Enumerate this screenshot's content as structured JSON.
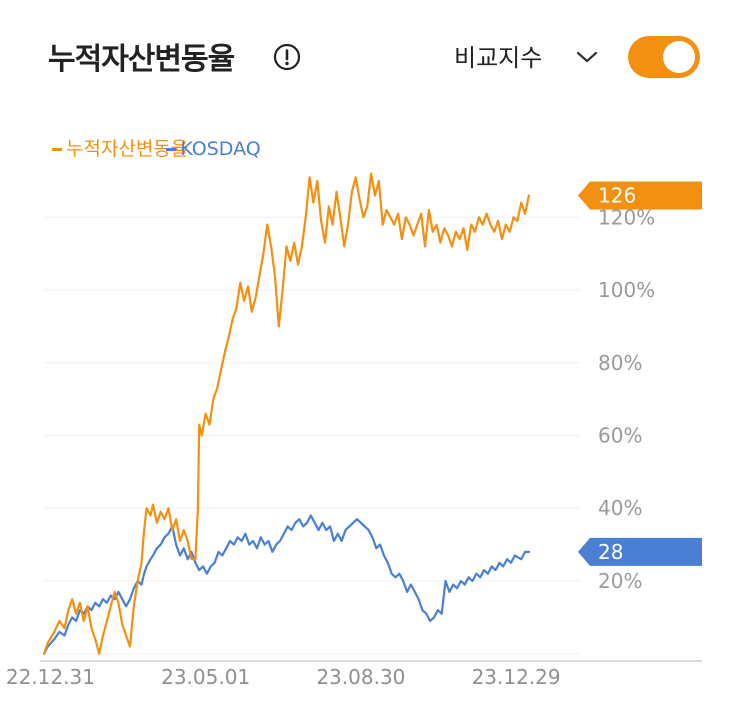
{
  "header": {
    "title": "누적자산변동율",
    "info_icon": "info-circle-icon",
    "compare_label": "비교지수",
    "chevron_icon": "chevron-down-icon",
    "toggle_on": true,
    "accent_color": "#f39012"
  },
  "chart_data": {
    "type": "line",
    "title": "",
    "legend_placement": "top-left",
    "grid": true,
    "y_axis_side": "right",
    "ylim": [
      -2,
      133
    ],
    "yticks": [
      "20%",
      "40%",
      "60%",
      "80%",
      "100%",
      "120%"
    ],
    "ytick_values": [
      20,
      40,
      60,
      80,
      100,
      120
    ],
    "xlim": [
      "2022-12-26",
      "2024-02-02"
    ],
    "xticks": [
      "22.12.31",
      "23.05.01",
      "23.08.30",
      "23.12.29"
    ],
    "xtick_values": [
      "2022-12-31",
      "2023-05-01",
      "2023-08-30",
      "2023-12-29"
    ],
    "series": [
      {
        "name": "누적자산변동율",
        "color": "#f39012",
        "last_value_label": "126",
        "points": [
          [
            "2022-12-26",
            0
          ],
          [
            "2022-12-29",
            3
          ],
          [
            "2023-01-03",
            6
          ],
          [
            "2023-01-07",
            9
          ],
          [
            "2023-01-11",
            7
          ],
          [
            "2023-01-14",
            12
          ],
          [
            "2023-01-17",
            15
          ],
          [
            "2023-01-20",
            11
          ],
          [
            "2023-01-23",
            14
          ],
          [
            "2023-01-26",
            9
          ],
          [
            "2023-01-29",
            13
          ],
          [
            "2023-02-01",
            7
          ],
          [
            "2023-02-04",
            4
          ],
          [
            "2023-02-07",
            0
          ],
          [
            "2023-02-10",
            5
          ],
          [
            "2023-02-13",
            9
          ],
          [
            "2023-02-16",
            13
          ],
          [
            "2023-02-19",
            17
          ],
          [
            "2023-02-22",
            14
          ],
          [
            "2023-02-25",
            8
          ],
          [
            "2023-02-28",
            5
          ],
          [
            "2023-03-03",
            2
          ],
          [
            "2023-03-06",
            13
          ],
          [
            "2023-03-09",
            20
          ],
          [
            "2023-03-12",
            25
          ],
          [
            "2023-03-14",
            34
          ],
          [
            "2023-03-16",
            40
          ],
          [
            "2023-03-19",
            38
          ],
          [
            "2023-03-21",
            41
          ],
          [
            "2023-03-24",
            36
          ],
          [
            "2023-03-27",
            39
          ],
          [
            "2023-03-30",
            37
          ],
          [
            "2023-04-02",
            40
          ],
          [
            "2023-04-05",
            34
          ],
          [
            "2023-04-08",
            37
          ],
          [
            "2023-04-11",
            31
          ],
          [
            "2023-04-14",
            34
          ],
          [
            "2023-04-17",
            31
          ],
          [
            "2023-04-20",
            26
          ],
          [
            "2023-04-23",
            26
          ],
          [
            "2023-04-25",
            40
          ],
          [
            "2023-04-26",
            63
          ],
          [
            "2023-04-28",
            60
          ],
          [
            "2023-05-01",
            66
          ],
          [
            "2023-05-04",
            63
          ],
          [
            "2023-05-07",
            70
          ],
          [
            "2023-05-10",
            73
          ],
          [
            "2023-05-13",
            78
          ],
          [
            "2023-05-16",
            83
          ],
          [
            "2023-05-19",
            87
          ],
          [
            "2023-05-22",
            92
          ],
          [
            "2023-05-25",
            95
          ],
          [
            "2023-05-28",
            102
          ],
          [
            "2023-05-31",
            97
          ],
          [
            "2023-06-03",
            101
          ],
          [
            "2023-06-06",
            94
          ],
          [
            "2023-06-09",
            98
          ],
          [
            "2023-06-12",
            104
          ],
          [
            "2023-06-15",
            110
          ],
          [
            "2023-06-18",
            118
          ],
          [
            "2023-06-21",
            112
          ],
          [
            "2023-06-24",
            104
          ],
          [
            "2023-06-27",
            90
          ],
          [
            "2023-06-30",
            100
          ],
          [
            "2023-07-03",
            112
          ],
          [
            "2023-07-06",
            108
          ],
          [
            "2023-07-09",
            113
          ],
          [
            "2023-07-12",
            107
          ],
          [
            "2023-07-15",
            112
          ],
          [
            "2023-07-18",
            120
          ],
          [
            "2023-07-21",
            131
          ],
          [
            "2023-07-24",
            124
          ],
          [
            "2023-07-27",
            130
          ],
          [
            "2023-07-30",
            119
          ],
          [
            "2023-08-02",
            113
          ],
          [
            "2023-08-05",
            123
          ],
          [
            "2023-08-08",
            118
          ],
          [
            "2023-08-11",
            127
          ],
          [
            "2023-08-14",
            120
          ],
          [
            "2023-08-17",
            112
          ],
          [
            "2023-08-20",
            118
          ],
          [
            "2023-08-23",
            127
          ],
          [
            "2023-08-26",
            131
          ],
          [
            "2023-08-29",
            125
          ],
          [
            "2023-09-01",
            120
          ],
          [
            "2023-09-04",
            123
          ],
          [
            "2023-09-07",
            132
          ],
          [
            "2023-09-10",
            126
          ],
          [
            "2023-09-13",
            130
          ],
          [
            "2023-09-16",
            118
          ],
          [
            "2023-09-19",
            122
          ],
          [
            "2023-09-22",
            120
          ],
          [
            "2023-09-25",
            118
          ],
          [
            "2023-09-28",
            121
          ],
          [
            "2023-10-01",
            114
          ],
          [
            "2023-10-04",
            120
          ],
          [
            "2023-10-07",
            118
          ],
          [
            "2023-10-10",
            115
          ],
          [
            "2023-10-13",
            118
          ],
          [
            "2023-10-16",
            121
          ],
          [
            "2023-10-19",
            112
          ],
          [
            "2023-10-22",
            122
          ],
          [
            "2023-10-25",
            116
          ],
          [
            "2023-10-28",
            118
          ],
          [
            "2023-10-31",
            113
          ],
          [
            "2023-11-03",
            117
          ],
          [
            "2023-11-06",
            115
          ],
          [
            "2023-11-09",
            112
          ],
          [
            "2023-11-12",
            116
          ],
          [
            "2023-11-15",
            114
          ],
          [
            "2023-11-18",
            117
          ],
          [
            "2023-11-21",
            111
          ],
          [
            "2023-11-24",
            118
          ],
          [
            "2023-11-27",
            116
          ],
          [
            "2023-11-30",
            120
          ],
          [
            "2023-12-03",
            118
          ],
          [
            "2023-12-06",
            121
          ],
          [
            "2023-12-09",
            118
          ],
          [
            "2023-12-12",
            116
          ],
          [
            "2023-12-15",
            119
          ],
          [
            "2023-12-18",
            114
          ],
          [
            "2023-12-21",
            118
          ],
          [
            "2023-12-24",
            116
          ],
          [
            "2023-12-27",
            120
          ],
          [
            "2023-12-30",
            119
          ],
          [
            "2024-01-02",
            124
          ],
          [
            "2024-01-05",
            121
          ],
          [
            "2024-01-08",
            126
          ]
        ]
      },
      {
        "name": "KOSDAQ",
        "color": "#4a7fd4",
        "last_value_label": "28",
        "points": [
          [
            "2022-12-26",
            0
          ],
          [
            "2022-12-29",
            2
          ],
          [
            "2023-01-03",
            4
          ],
          [
            "2023-01-07",
            6
          ],
          [
            "2023-01-11",
            5
          ],
          [
            "2023-01-14",
            8
          ],
          [
            "2023-01-17",
            10
          ],
          [
            "2023-01-20",
            9
          ],
          [
            "2023-01-23",
            12
          ],
          [
            "2023-01-26",
            11
          ],
          [
            "2023-01-29",
            13
          ],
          [
            "2023-02-01",
            12
          ],
          [
            "2023-02-04",
            14
          ],
          [
            "2023-02-07",
            13
          ],
          [
            "2023-02-10",
            15
          ],
          [
            "2023-02-13",
            14
          ],
          [
            "2023-02-16",
            16
          ],
          [
            "2023-02-19",
            15
          ],
          [
            "2023-02-22",
            17
          ],
          [
            "2023-02-25",
            15
          ],
          [
            "2023-02-28",
            13
          ],
          [
            "2023-03-03",
            15
          ],
          [
            "2023-03-06",
            18
          ],
          [
            "2023-03-09",
            20
          ],
          [
            "2023-03-12",
            19
          ],
          [
            "2023-03-14",
            22
          ],
          [
            "2023-03-16",
            24
          ],
          [
            "2023-03-19",
            26
          ],
          [
            "2023-03-21",
            27
          ],
          [
            "2023-03-24",
            29
          ],
          [
            "2023-03-27",
            30
          ],
          [
            "2023-03-30",
            32
          ],
          [
            "2023-04-02",
            33
          ],
          [
            "2023-04-05",
            35
          ],
          [
            "2023-04-08",
            30
          ],
          [
            "2023-04-11",
            27
          ],
          [
            "2023-04-14",
            29
          ],
          [
            "2023-04-17",
            26
          ],
          [
            "2023-04-20",
            28
          ],
          [
            "2023-04-23",
            25
          ],
          [
            "2023-04-26",
            23
          ],
          [
            "2023-04-29",
            24
          ],
          [
            "2023-05-02",
            22
          ],
          [
            "2023-05-05",
            24
          ],
          [
            "2023-05-08",
            25
          ],
          [
            "2023-05-11",
            28
          ],
          [
            "2023-05-14",
            27
          ],
          [
            "2023-05-17",
            29
          ],
          [
            "2023-05-20",
            31
          ],
          [
            "2023-05-23",
            30
          ],
          [
            "2023-05-26",
            32
          ],
          [
            "2023-05-29",
            31
          ],
          [
            "2023-06-01",
            33
          ],
          [
            "2023-06-04",
            30
          ],
          [
            "2023-06-07",
            31
          ],
          [
            "2023-06-10",
            29
          ],
          [
            "2023-06-13",
            32
          ],
          [
            "2023-06-16",
            30
          ],
          [
            "2023-06-19",
            31
          ],
          [
            "2023-06-22",
            28
          ],
          [
            "2023-06-25",
            30
          ],
          [
            "2023-06-28",
            31
          ],
          [
            "2023-07-01",
            33
          ],
          [
            "2023-07-04",
            35
          ],
          [
            "2023-07-07",
            34
          ],
          [
            "2023-07-10",
            36
          ],
          [
            "2023-07-13",
            37
          ],
          [
            "2023-07-16",
            35
          ],
          [
            "2023-07-19",
            36
          ],
          [
            "2023-07-22",
            38
          ],
          [
            "2023-07-25",
            36
          ],
          [
            "2023-07-28",
            34
          ],
          [
            "2023-07-31",
            36
          ],
          [
            "2023-08-03",
            34
          ],
          [
            "2023-08-06",
            35
          ],
          [
            "2023-08-09",
            31
          ],
          [
            "2023-08-12",
            33
          ],
          [
            "2023-08-15",
            31
          ],
          [
            "2023-08-18",
            34
          ],
          [
            "2023-08-21",
            35
          ],
          [
            "2023-08-24",
            36
          ],
          [
            "2023-08-27",
            37
          ],
          [
            "2023-08-30",
            36
          ],
          [
            "2023-09-02",
            35
          ],
          [
            "2023-09-05",
            34
          ],
          [
            "2023-09-08",
            32
          ],
          [
            "2023-09-11",
            29
          ],
          [
            "2023-09-14",
            30
          ],
          [
            "2023-09-17",
            27
          ],
          [
            "2023-09-20",
            25
          ],
          [
            "2023-09-23",
            22
          ],
          [
            "2023-09-26",
            21
          ],
          [
            "2023-09-29",
            22
          ],
          [
            "2023-10-02",
            20
          ],
          [
            "2023-10-05",
            17
          ],
          [
            "2023-10-08",
            19
          ],
          [
            "2023-10-11",
            17
          ],
          [
            "2023-10-14",
            15
          ],
          [
            "2023-10-17",
            12
          ],
          [
            "2023-10-20",
            11
          ],
          [
            "2023-10-23",
            9
          ],
          [
            "2023-10-26",
            10
          ],
          [
            "2023-10-29",
            12
          ],
          [
            "2023-11-01",
            11
          ],
          [
            "2023-11-04",
            20
          ],
          [
            "2023-11-07",
            17
          ],
          [
            "2023-11-10",
            19
          ],
          [
            "2023-11-13",
            18
          ],
          [
            "2023-11-16",
            20
          ],
          [
            "2023-11-19",
            19
          ],
          [
            "2023-11-22",
            21
          ],
          [
            "2023-11-25",
            20
          ],
          [
            "2023-11-28",
            22
          ],
          [
            "2023-12-01",
            21
          ],
          [
            "2023-12-04",
            23
          ],
          [
            "2023-12-07",
            22
          ],
          [
            "2023-12-10",
            24
          ],
          [
            "2023-12-13",
            23
          ],
          [
            "2023-12-16",
            25
          ],
          [
            "2023-12-19",
            24
          ],
          [
            "2023-12-22",
            26
          ],
          [
            "2023-12-25",
            25
          ],
          [
            "2023-12-28",
            27
          ],
          [
            "2024-01-02",
            26
          ],
          [
            "2024-01-05",
            28
          ],
          [
            "2024-01-08",
            28
          ]
        ]
      }
    ]
  }
}
